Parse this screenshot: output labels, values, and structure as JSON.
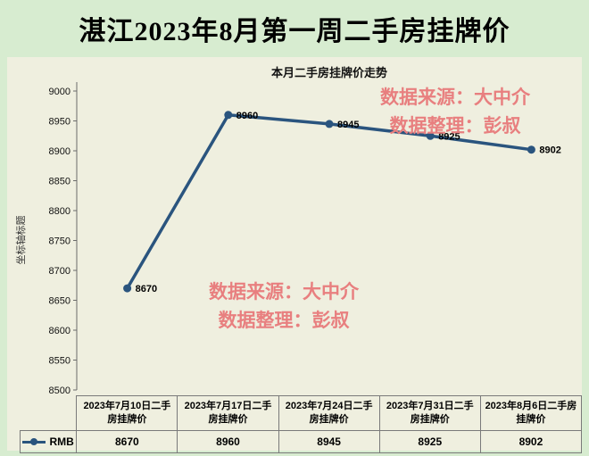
{
  "banner": {
    "title": "湛江2023年8月第一周二手房挂牌价"
  },
  "watermarks": [
    {
      "line1": "数据来源：大中介",
      "line2": "数据整理：彭叔"
    },
    {
      "line1": "数据来源：大中介",
      "line2": "数据整理：彭叔"
    }
  ],
  "chart_data": {
    "type": "line",
    "title": "本月二手房挂牌价走势",
    "y_axis_title": "坐标轴标题",
    "categories": [
      "2023年7月10日二手房挂牌价",
      "2023年7月17日二手房挂牌价",
      "2023年7月24日二手房挂牌价",
      "2023年7月31日二手房挂牌价",
      "2023年8月6日二手房挂牌价"
    ],
    "series": [
      {
        "name": "RMB",
        "values": [
          8670,
          8960,
          8945,
          8925,
          8902
        ]
      }
    ],
    "ylim": [
      8500,
      9000
    ],
    "ytick_step": 50,
    "grid": false,
    "legend_position": "table-left",
    "data_labels": true,
    "colors": {
      "line": "#2a547e",
      "watermark": "#e87f7f",
      "chart_background": "#efefdf",
      "page_background": "#d7ecd0"
    }
  }
}
